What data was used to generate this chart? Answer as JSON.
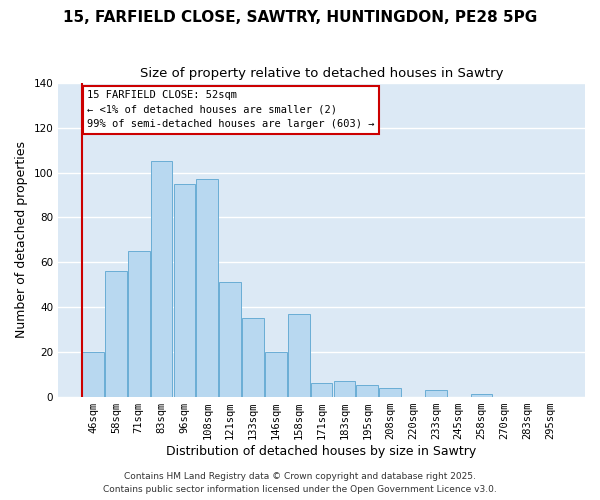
{
  "title": "15, FARFIELD CLOSE, SAWTRY, HUNTINGDON, PE28 5PG",
  "subtitle": "Size of property relative to detached houses in Sawtry",
  "xlabel": "Distribution of detached houses by size in Sawtry",
  "ylabel": "Number of detached properties",
  "categories": [
    "46sqm",
    "58sqm",
    "71sqm",
    "83sqm",
    "96sqm",
    "108sqm",
    "121sqm",
    "133sqm",
    "146sqm",
    "158sqm",
    "171sqm",
    "183sqm",
    "195sqm",
    "208sqm",
    "220sqm",
    "233sqm",
    "245sqm",
    "258sqm",
    "270sqm",
    "283sqm",
    "295sqm"
  ],
  "values": [
    20,
    56,
    65,
    105,
    95,
    97,
    51,
    35,
    20,
    37,
    6,
    7,
    5,
    4,
    0,
    3,
    0,
    1,
    0,
    0,
    0
  ],
  "bar_color": "#b8d8f0",
  "bar_edge_color": "#6aadd5",
  "ylim": [
    0,
    140
  ],
  "yticks": [
    0,
    20,
    40,
    60,
    80,
    100,
    120,
    140
  ],
  "marker_color": "#cc0000",
  "annotation_title": "15 FARFIELD CLOSE: 52sqm",
  "annotation_line1": "← <1% of detached houses are smaller (2)",
  "annotation_line2": "99% of semi-detached houses are larger (603) →",
  "footer1": "Contains HM Land Registry data © Crown copyright and database right 2025.",
  "footer2": "Contains public sector information licensed under the Open Government Licence v3.0.",
  "background_color": "#ffffff",
  "plot_bg_color": "#dce9f5",
  "grid_color": "#ffffff",
  "title_fontsize": 11,
  "subtitle_fontsize": 9.5,
  "axis_label_fontsize": 9,
  "tick_fontsize": 7.5,
  "footer_fontsize": 6.5
}
